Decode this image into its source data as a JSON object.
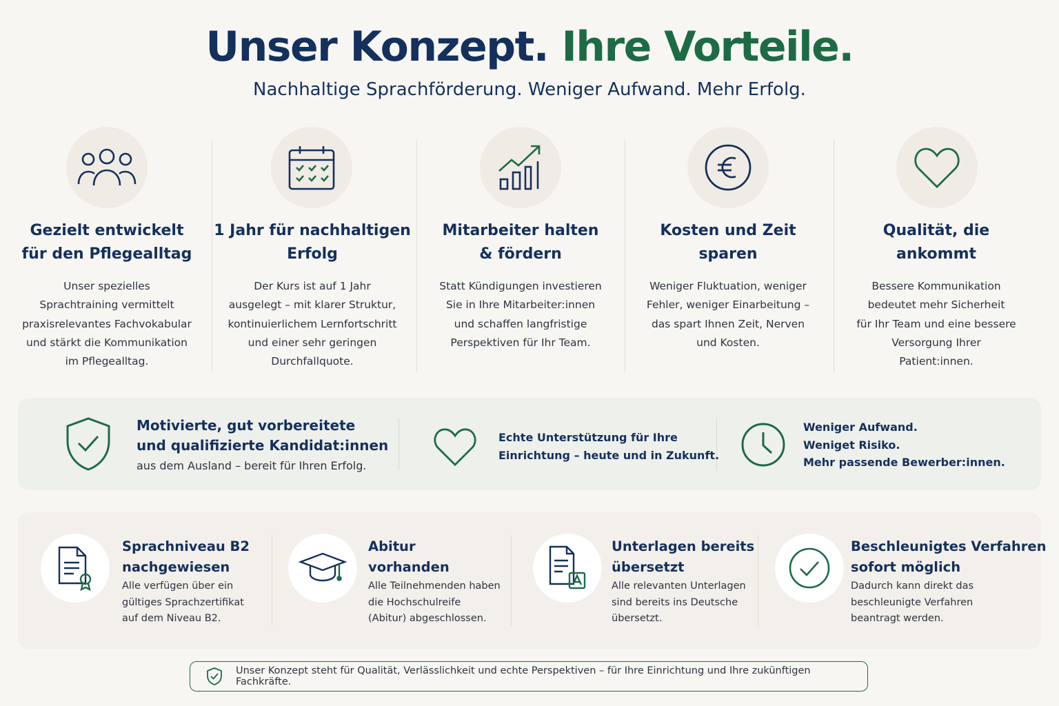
{
  "header": {
    "title_part1": "Unser Konzept.",
    "title_part2": "Ihre Vorteile.",
    "subtitle": "Nachhaltige Sprachförderung. Weniger Aufwand. Mehr Erfolg."
  },
  "features": [
    {
      "title": [
        "Gezielt entwickelt",
        "für den Pflegealltag"
      ],
      "text": [
        "Unser spezielles",
        "Sprachtraining vermittelt",
        "praxisrelevantes Fachvokabular",
        "und stärkt die Kommunikation",
        "im Pflegealltag."
      ]
    },
    {
      "title": [
        "1 Jahr für nachhaltigen",
        "Erfolg"
      ],
      "text": [
        "Der Kurs ist auf 1 Jahr",
        "ausgelegt – mit klarer Struktur,",
        "kontinuierlichem Lernfortschritt",
        "und einer sehr geringen",
        "Durchfallquote."
      ]
    },
    {
      "title": [
        "Mitarbeiter halten",
        "& fördern"
      ],
      "text": [
        "Statt Kündigungen investieren",
        "Sie in Ihre Mitarbeiter:innen",
        "und schaffen langfristige",
        "Perspektiven für Ihr Team."
      ]
    },
    {
      "title": [
        "Kosten und Zeit",
        "sparen"
      ],
      "text": [
        "Weniger Fluktuation, weniger",
        "Fehler, weniger Einarbeitung –",
        "das spart Ihnen Zeit, Nerven",
        "und Kosten."
      ]
    },
    {
      "title": [
        "Qualität, die",
        "ankommt"
      ],
      "text": [
        "Bessere Kommunikation",
        "bedeutet mehr Sicherheit",
        "für Ihr Team und eine bessere",
        "Versorgung Ihrer",
        "Patient:innen."
      ]
    }
  ],
  "highlights": [
    {
      "title": [
        "Motivierte, gut vorbereitete",
        "und qualifizierte Kandidat:innen"
      ],
      "text": [
        "aus dem Ausland – bereit für Ihren Erfolg."
      ]
    },
    {
      "lines": [
        "Echte Unterstützung für Ihre",
        "Einrichtung – heute und in Zukunft."
      ]
    },
    {
      "lines": [
        "Weniger Aufwand.",
        "Weniget Risiko.",
        "Mehr passende Bewerber:innen."
      ]
    }
  ],
  "requirements": [
    {
      "title": [
        "Sprachniveau B2",
        "nachgewiesen"
      ],
      "text": [
        "Alle verfügen über ein",
        "gültiges Sprachzertifikat",
        "auf dem Niveau B2."
      ]
    },
    {
      "title": [
        "Abitur",
        "vorhanden"
      ],
      "text": [
        "Alle Teilnehmenden haben",
        "die Hochschulreife",
        "(Abitur) abgeschlossen."
      ]
    },
    {
      "title": [
        "Unterlagen bereits",
        "übersetzt"
      ],
      "text": [
        "Alle relevanten Unterlagen",
        "sind bereits ins Deutsche",
        "übersetzt."
      ]
    },
    {
      "title": [
        "Beschleunigtes Verfahren",
        "sofort möglich"
      ],
      "text": [
        "Dadurch kann direkt das",
        "beschleunigte Verfahren",
        "beantragt werden."
      ]
    }
  ],
  "footer": {
    "text": "Unser Konzept steht für Qualität, Verlässlichkeit und echte Perspektiven – für Ihre Einrichtung und Ihre zukünftigen Fachkräfte."
  }
}
